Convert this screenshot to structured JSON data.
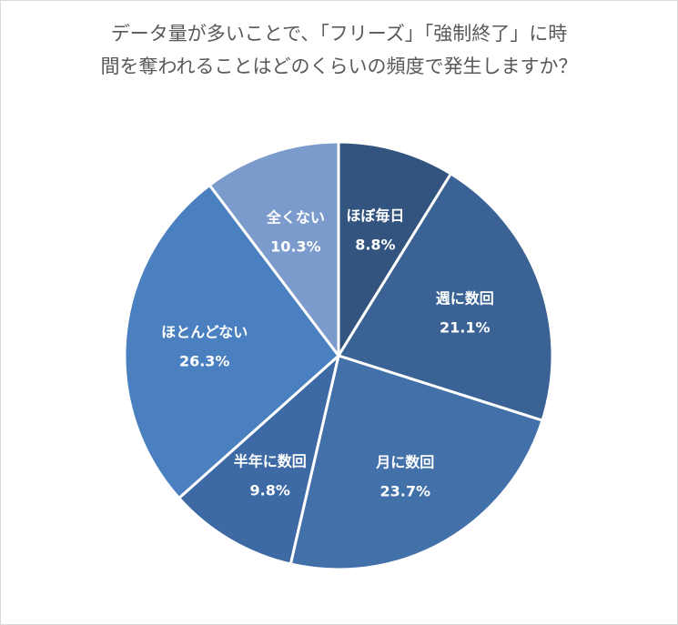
{
  "title_lines": [
    "データ量が多いことで、「フリーズ」「強制終了」に時",
    "間を奪われることはどのくらいの頻度で発生しますか？"
  ],
  "chart_data": {
    "type": "pie",
    "title": "データ量が多いことで、「フリーズ」「強制終了」に時間を奪われることはどのくらいの頻度で発生しますか？",
    "unit": "%",
    "start": "12 o'clock",
    "direction": "clockwise",
    "slices": [
      {
        "label": "ほぼ毎日",
        "value": 8.8,
        "value_text": "8.8%",
        "color": "#32547f"
      },
      {
        "label": "週に数回",
        "value": 21.1,
        "value_text": "21.1%",
        "color": "#3a6295"
      },
      {
        "label": "月に数回",
        "value": 23.7,
        "value_text": "23.7%",
        "color": "#4270a8"
      },
      {
        "label": "半年に数回",
        "value": 9.8,
        "value_text": "9.8%",
        "color": "#3d69a4"
      },
      {
        "label": "ほとんどない",
        "value": 26.3,
        "value_text": "26.3%",
        "color": "#4a80bf"
      },
      {
        "label": "全くない",
        "value": 10.3,
        "value_text": "10.3%",
        "color": "#7a9bcb"
      }
    ]
  }
}
